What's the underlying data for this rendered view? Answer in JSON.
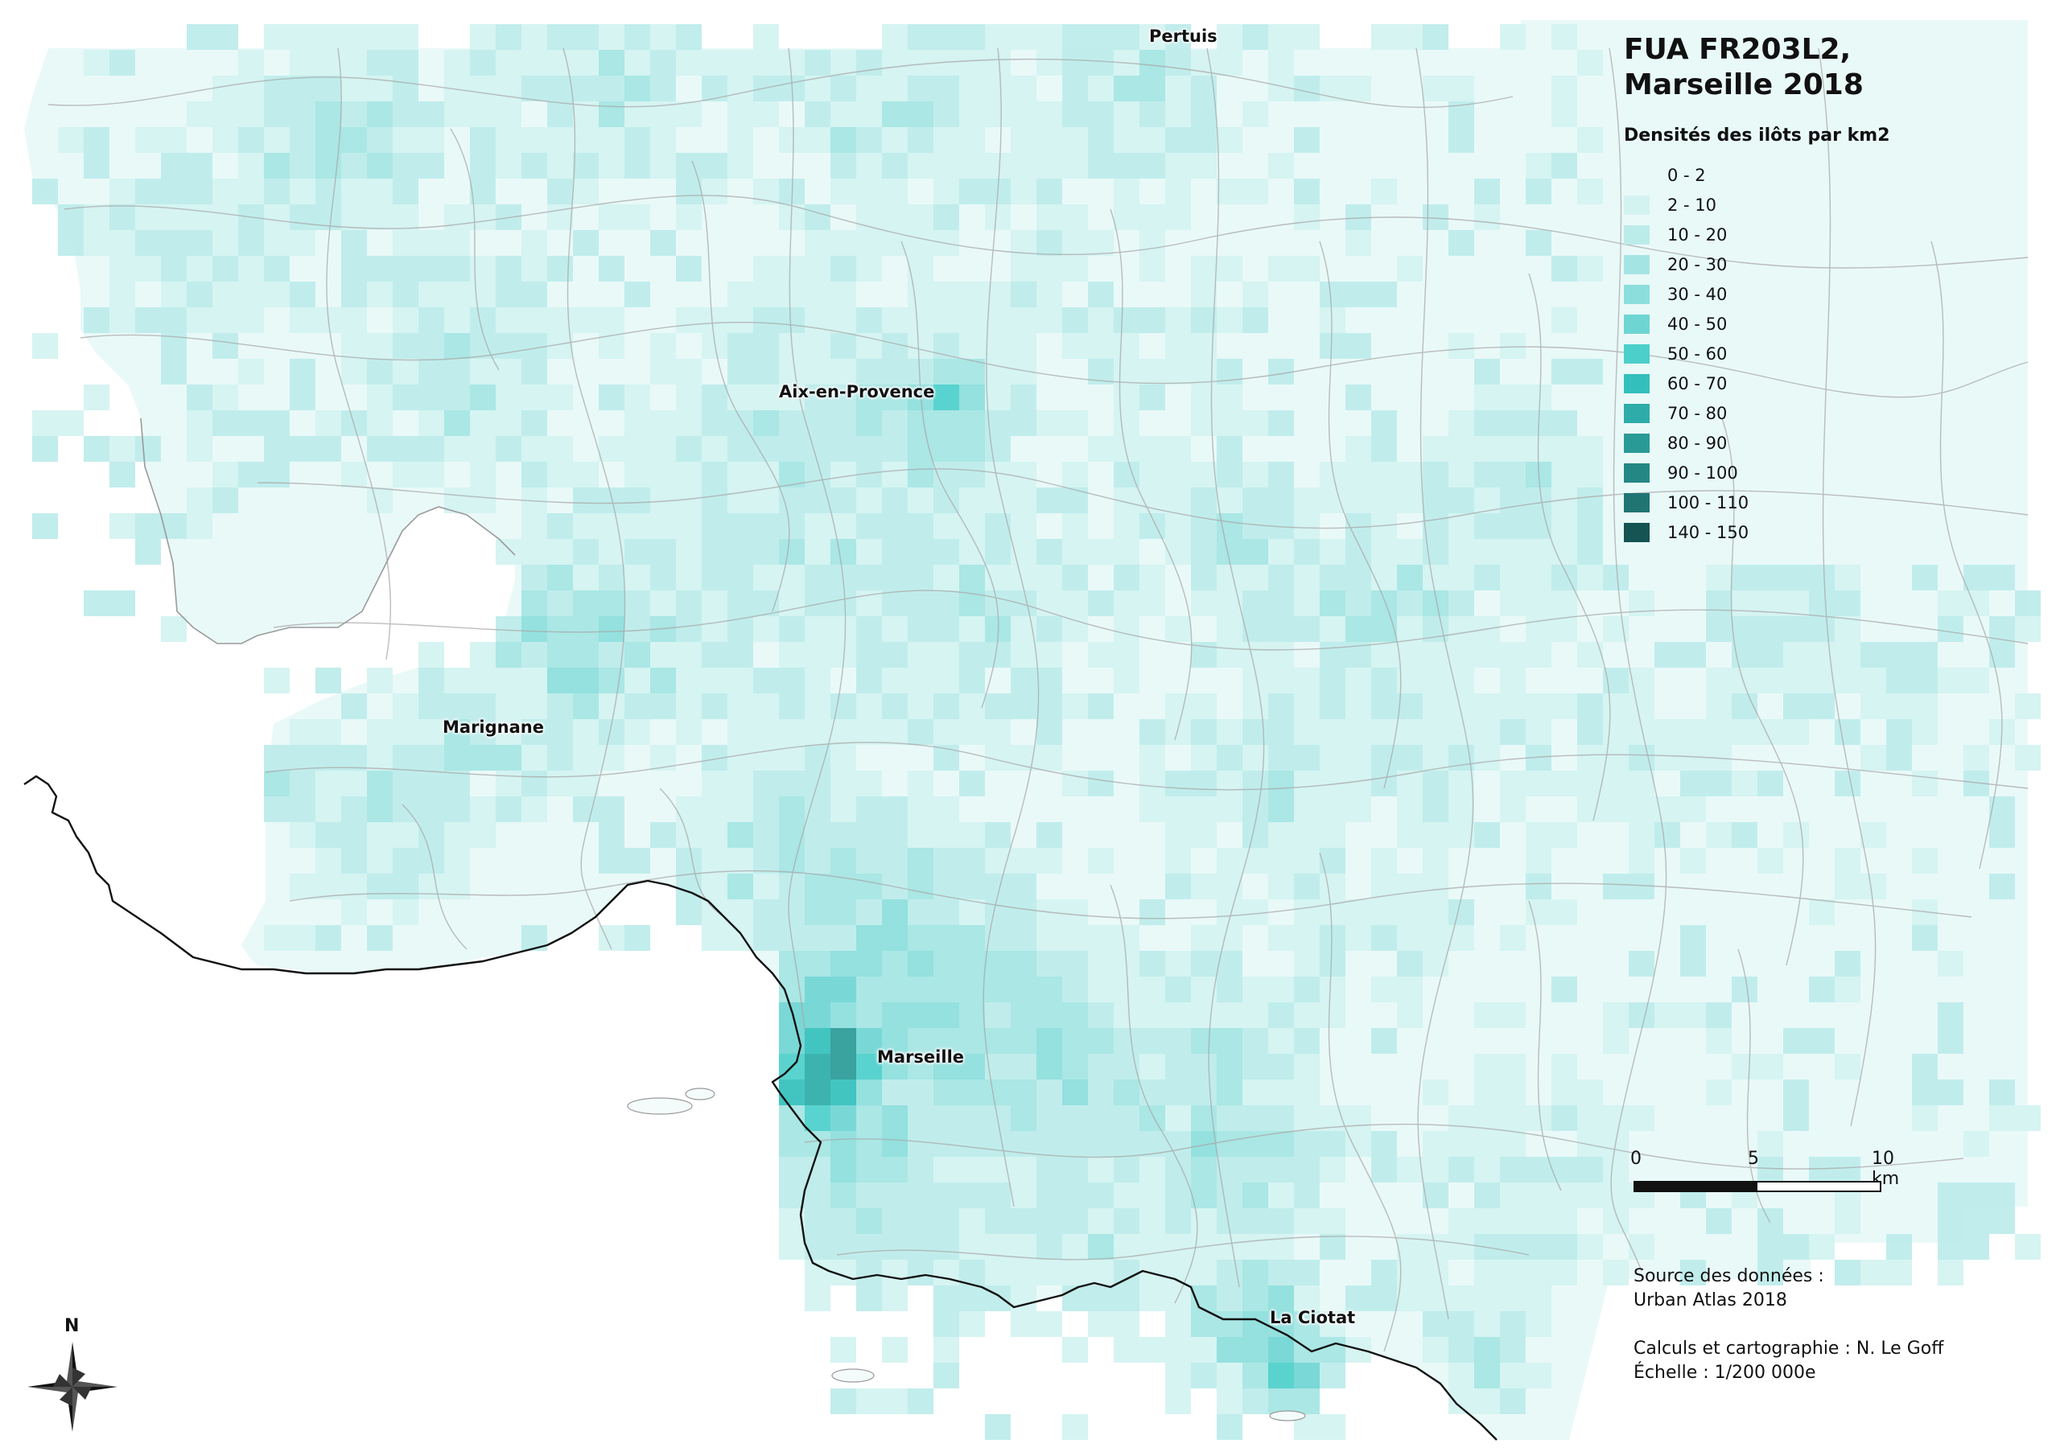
{
  "title": "FUA FR203L2, Marseille 2018",
  "legend": {
    "title": "Densités des ilôts par km2",
    "classes": [
      {
        "label": "0 - 2",
        "color": "#e9f9f8"
      },
      {
        "label": "2 - 10",
        "color": "#d3f3f1"
      },
      {
        "label": "10 - 20",
        "color": "#bcecea"
      },
      {
        "label": "20 - 30",
        "color": "#a4e5e3"
      },
      {
        "label": "30 - 40",
        "color": "#8cdedc"
      },
      {
        "label": "40 - 50",
        "color": "#6fd5d3"
      },
      {
        "label": "50 - 60",
        "color": "#4ccfcb"
      },
      {
        "label": "60 - 70",
        "color": "#33c0bc"
      },
      {
        "label": "70 - 80",
        "color": "#2eaca9"
      },
      {
        "label": "80 - 90",
        "color": "#2a9a97"
      },
      {
        "label": "90 - 100",
        "color": "#258784"
      },
      {
        "label": "100 - 110",
        "color": "#207573"
      },
      {
        "label": "140 - 150",
        "color": "#145453"
      }
    ]
  },
  "cities": [
    {
      "name": "Pertuis"
    },
    {
      "name": "Aix-en-Provence"
    },
    {
      "name": "Marignane"
    },
    {
      "name": "Marseille"
    },
    {
      "name": "La Ciotat"
    }
  ],
  "scale": {
    "ticks": [
      "0",
      "5",
      "10 km"
    ]
  },
  "source": {
    "line1": "Source des données :",
    "line2": "Urban Atlas 2018",
    "line3": "Calculs et cartographie : N. Le Goff",
    "line4": "Échelle : 1/200 000e"
  },
  "north": {
    "label": "N"
  },
  "chart_data": {
    "type": "heatmap",
    "title": "FUA FR203L2, Marseille 2018",
    "legend_title": "Densités des ilôts par km2",
    "classes": [
      "0 - 2",
      "2 - 10",
      "10 - 20",
      "20 - 30",
      "30 - 40",
      "40 - 50",
      "50 - 60",
      "60 - 70",
      "70 - 80",
      "80 - 90",
      "90 - 100",
      "100 - 110",
      "140 - 150"
    ],
    "max_class": "140 - 150",
    "peak_location": "Marseille"
  }
}
